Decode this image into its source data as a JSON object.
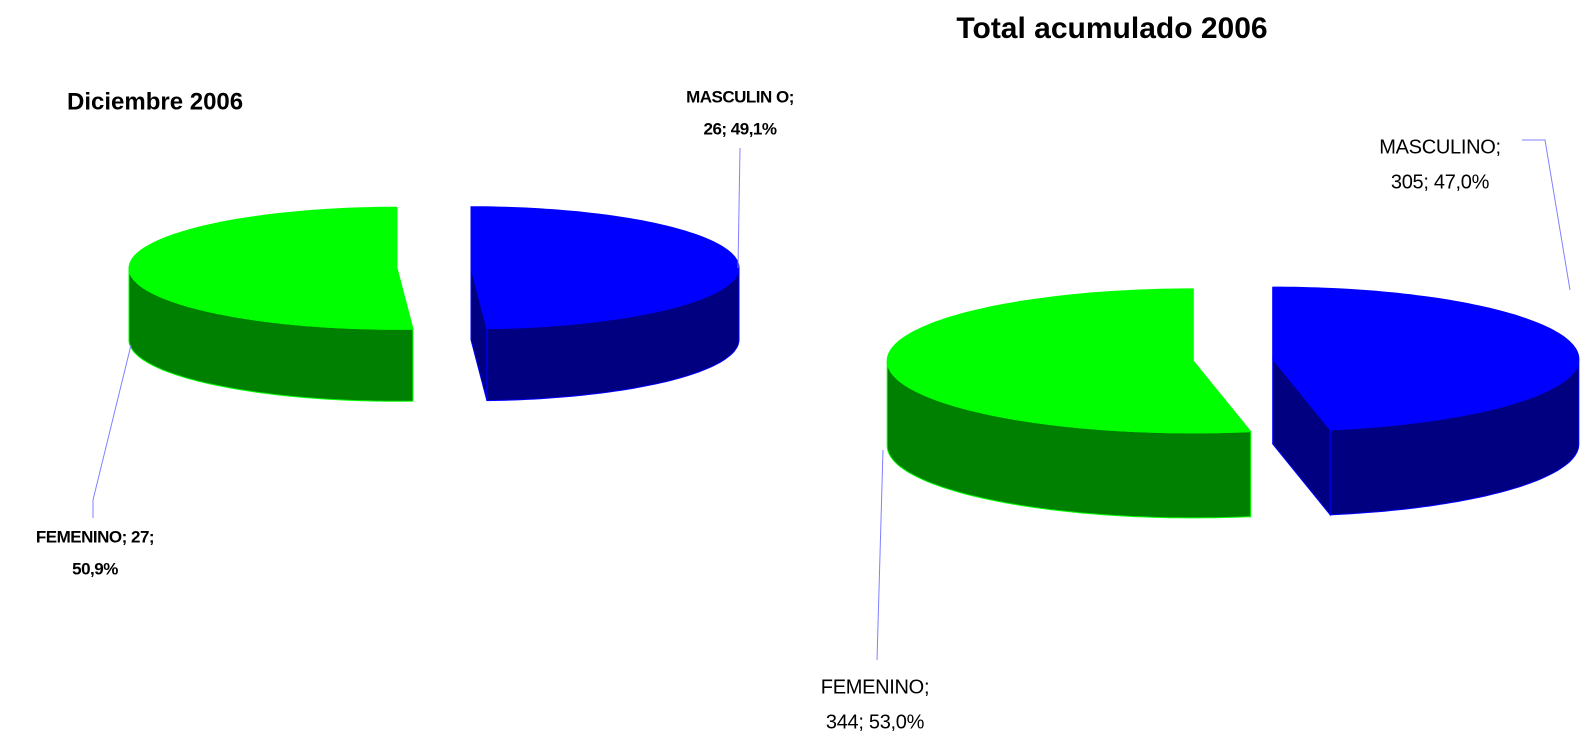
{
  "chart_data": [
    {
      "type": "pie",
      "title": "Diciembre  2006",
      "values": [
        27,
        26
      ],
      "labels": [
        [
          "FEMENINO; 27;",
          "50,9%"
        ],
        [
          "MASCULIN O;",
          "26; 49,1%"
        ]
      ],
      "colors": [
        "#00ff00",
        "#0000ff"
      ],
      "side_colors": [
        "#008000",
        "#000080"
      ],
      "bold_labels": true
    },
    {
      "type": "pie",
      "title": "Total  acumulado 2006",
      "values": [
        344,
        305
      ],
      "labels": [
        [
          "FEMENINO;",
          "344; 53,0%"
        ],
        [
          "MASCULINO;",
          "305; 47,0%"
        ]
      ],
      "colors": [
        "#00ff00",
        "#0000ff"
      ],
      "side_colors": [
        "#008000",
        "#000080"
      ],
      "bold_labels": false
    }
  ]
}
